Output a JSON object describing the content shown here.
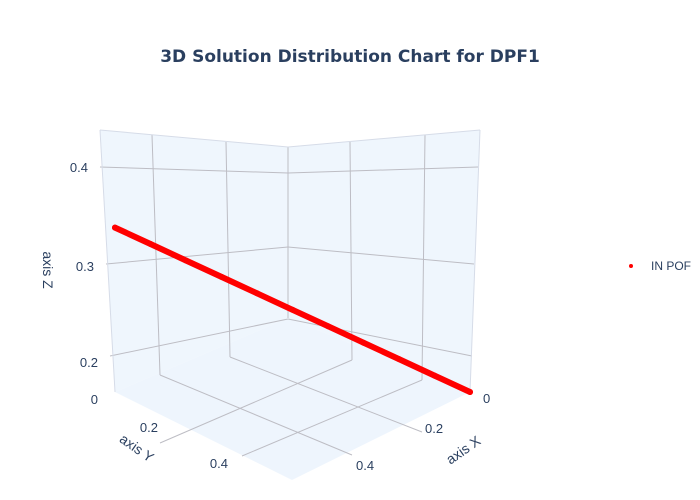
{
  "chart_data": {
    "type": "scatter3d",
    "title": "3D Solution Distribution Chart for DPF1",
    "axes": {
      "x": {
        "label": "axis X",
        "ticks": [
          "0",
          "0.2",
          "0.4"
        ],
        "range": [
          0,
          0.5
        ]
      },
      "y": {
        "label": "axis Y",
        "ticks": [
          "0",
          "0.2",
          "0.4"
        ],
        "range": [
          0,
          0.5
        ]
      },
      "z": {
        "label": "axis Z",
        "ticks": [
          "0.2",
          "0.3",
          "0.4"
        ],
        "range": [
          0.17,
          0.43
        ]
      }
    },
    "series": [
      {
        "name": "IN POF",
        "color": "#ff0000",
        "x": [
          0.0,
          0.05,
          0.1,
          0.15,
          0.2,
          0.25,
          0.3,
          0.35,
          0.4,
          0.45,
          0.5
        ],
        "y": [
          0.5,
          0.45,
          0.4,
          0.35,
          0.3,
          0.25,
          0.2,
          0.15,
          0.1,
          0.05,
          0.0
        ],
        "z": [
          0.42,
          0.395,
          0.37,
          0.345,
          0.32,
          0.295,
          0.27,
          0.245,
          0.22,
          0.195,
          0.17
        ]
      }
    ],
    "legend": "right",
    "background_color": "#eff6fd"
  }
}
